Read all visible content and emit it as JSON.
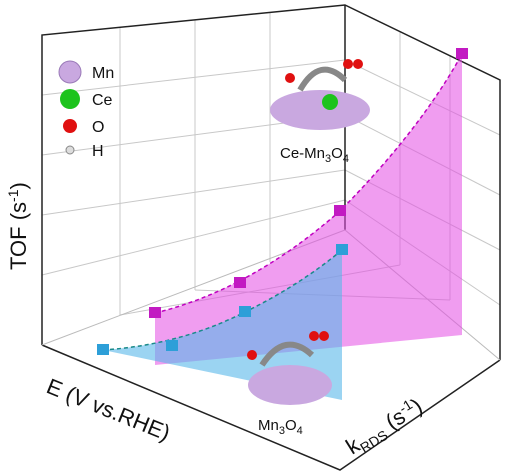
{
  "legend": [
    {
      "label": "Mn"
    },
    {
      "label": "Ce"
    },
    {
      "label": "O"
    },
    {
      "label": "H"
    }
  ],
  "axes": {
    "y": [
      "TOF (s",
      "-1",
      ")"
    ],
    "x": [
      "E (V vs.RHE)"
    ],
    "z": [
      "k",
      "RDS",
      " (s",
      "-1",
      ")"
    ]
  },
  "structures": [
    {
      "label": [
        "Ce-Mn",
        "3",
        "O",
        "4"
      ]
    },
    {
      "label": [
        "Mn",
        "3",
        "O",
        "4"
      ]
    }
  ]
}
